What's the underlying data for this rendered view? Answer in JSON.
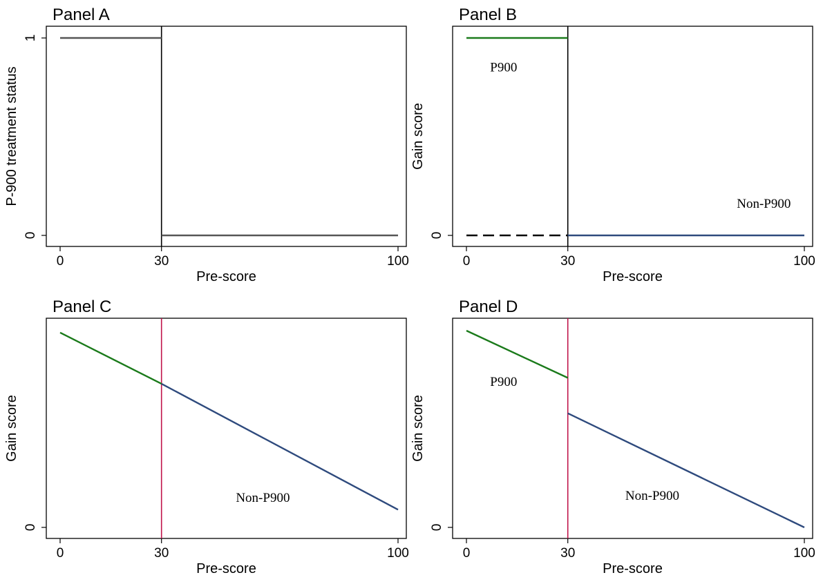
{
  "colors": {
    "treated": "#1a7a1a",
    "untreated": "#2e4a7d",
    "status_line": "#555555",
    "cutoff_black": "#000000",
    "cutoff_red": "#c0134a"
  },
  "chart_data": [
    {
      "id": "A",
      "type": "line",
      "title": "Panel A",
      "xlabel": "Pre-score",
      "ylabel": "P-900 treatment status",
      "xlim": [
        0,
        100
      ],
      "ylim": [
        0,
        1
      ],
      "xticks": [
        0,
        30,
        100
      ],
      "xtick_labels": [
        "0",
        "30",
        "100"
      ],
      "yticks": [
        0,
        1
      ],
      "ytick_labels": [
        "0",
        "1"
      ],
      "cutoff": {
        "x": 30,
        "color": "cutoff_black"
      },
      "series": [
        {
          "points": [
            [
              0,
              1
            ],
            [
              30,
              1
            ]
          ],
          "color": "status_line",
          "dash": "solid"
        },
        {
          "points": [
            [
              30,
              0
            ],
            [
              100,
              0
            ]
          ],
          "color": "status_line",
          "dash": "solid"
        }
      ],
      "annotations": []
    },
    {
      "id": "B",
      "type": "line",
      "title": "Panel B",
      "xlabel": "Pre-score",
      "ylabel": "Gain score",
      "xlim": [
        0,
        100
      ],
      "ylim": [
        0,
        1
      ],
      "xticks": [
        0,
        30,
        100
      ],
      "xtick_labels": [
        "0",
        "30",
        "100"
      ],
      "yticks": [
        0
      ],
      "ytick_labels": [
        "0"
      ],
      "cutoff": {
        "x": 30,
        "color": "cutoff_black"
      },
      "series": [
        {
          "points": [
            [
              0,
              1
            ],
            [
              30,
              1
            ]
          ],
          "color": "treated",
          "dash": "solid"
        },
        {
          "points": [
            [
              0,
              0
            ],
            [
              30,
              0
            ]
          ],
          "color": "cutoff_black",
          "dash": "dashed"
        },
        {
          "points": [
            [
              30,
              0
            ],
            [
              100,
              0
            ]
          ],
          "color": "untreated",
          "dash": "solid"
        }
      ],
      "annotations": [
        {
          "text": "P900",
          "x": 11,
          "y": 0.83
        },
        {
          "text": "Non-P900",
          "x": 88,
          "y": 0.14
        }
      ]
    },
    {
      "id": "C",
      "type": "line",
      "title": "Panel C",
      "xlabel": "Pre-score",
      "ylabel": "Gain score",
      "xlim": [
        0,
        100
      ],
      "ylim": [
        0,
        1
      ],
      "xticks": [
        0,
        30,
        100
      ],
      "xtick_labels": [
        "0",
        "30",
        "100"
      ],
      "yticks": [
        0
      ],
      "ytick_labels": [
        "0"
      ],
      "cutoff": {
        "x": 30,
        "color": "cutoff_red"
      },
      "series": [
        {
          "points": [
            [
              0,
              0.99
            ],
            [
              30,
              0.73
            ]
          ],
          "color": "treated",
          "dash": "solid"
        },
        {
          "points": [
            [
              30,
              0.73
            ],
            [
              100,
              0.09
            ]
          ],
          "color": "untreated",
          "dash": "solid"
        }
      ],
      "annotations": [
        {
          "text": "Non-P900",
          "x": 60,
          "y": 0.13
        }
      ]
    },
    {
      "id": "D",
      "type": "line",
      "title": "Panel D",
      "xlabel": "Pre-score",
      "ylabel": "Gain score",
      "xlim": [
        0,
        100
      ],
      "ylim": [
        0,
        1
      ],
      "xticks": [
        0,
        30,
        100
      ],
      "xtick_labels": [
        "0",
        "30",
        "100"
      ],
      "yticks": [
        0
      ],
      "ytick_labels": [
        "0"
      ],
      "cutoff": {
        "x": 30,
        "color": "cutoff_red"
      },
      "series": [
        {
          "points": [
            [
              0,
              1
            ],
            [
              30,
              0.76
            ]
          ],
          "color": "treated",
          "dash": "solid"
        },
        {
          "points": [
            [
              30,
              0.58
            ],
            [
              100,
              0
            ]
          ],
          "color": "untreated",
          "dash": "solid"
        }
      ],
      "annotations": [
        {
          "text": "P900",
          "x": 11,
          "y": 0.72
        },
        {
          "text": "Non-P900",
          "x": 55,
          "y": 0.14
        }
      ]
    }
  ]
}
